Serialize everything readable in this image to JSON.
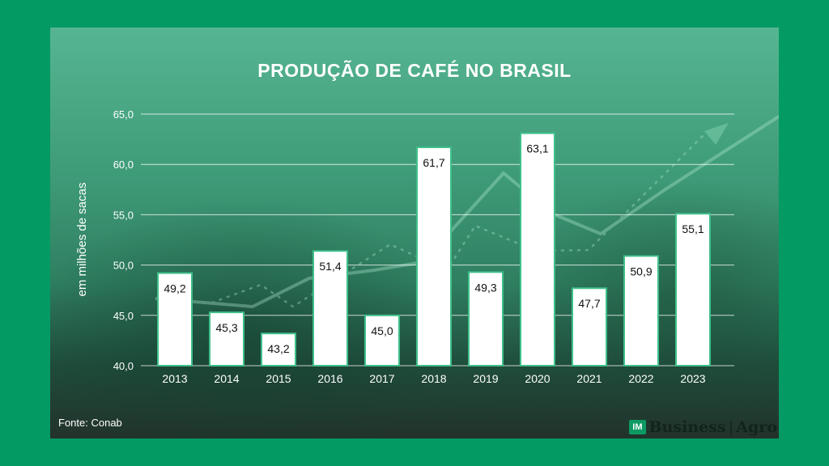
{
  "chart_data": {
    "type": "bar",
    "title": "PRODUÇÃO DE CAFÉ NO BRASIL",
    "ylabel": "em milhões de sacas",
    "xlabel": "",
    "categories": [
      "2013",
      "2014",
      "2015",
      "2016",
      "2017",
      "2018",
      "2019",
      "2020",
      "2021",
      "2022",
      "2023"
    ],
    "values": [
      49.2,
      45.3,
      43.2,
      51.4,
      45.0,
      61.7,
      49.3,
      63.1,
      47.7,
      50.9,
      55.1
    ],
    "value_labels": [
      "49,2",
      "45,3",
      "43,2",
      "51,4",
      "45,0",
      "61,7",
      "49,3",
      "63,1",
      "47,7",
      "50,9",
      "55,1"
    ],
    "ylim": [
      40,
      65
    ],
    "yticks": [
      "40,0",
      "45,0",
      "50,0",
      "55,0",
      "60,0",
      "65,0"
    ],
    "ytick_values": [
      40,
      45,
      50,
      55,
      60,
      65
    ],
    "grid": true,
    "bar_color": "#ffffff",
    "bar_border_color": "#3fc08a"
  },
  "footer": {
    "source": "Fonte: Conab",
    "logo_badge": "IM",
    "logo_business": "Business",
    "logo_separator": "|",
    "logo_agro": "Agro"
  }
}
